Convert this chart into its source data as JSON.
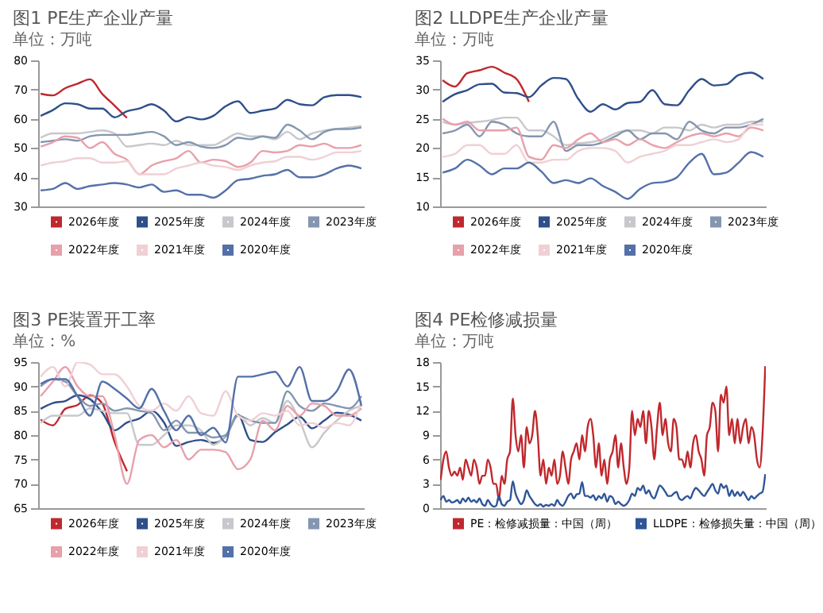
{
  "chart_data": [
    {
      "type": "line",
      "title": "图1 PE生产企业产量",
      "subtitle": "单位：万吨",
      "categories": [
        null,
        null,
        null,
        null,
        null,
        null,
        null,
        null,
        null,
        null,
        null,
        null,
        null,
        null,
        null,
        null,
        null,
        null,
        null,
        null,
        null,
        null,
        null,
        null,
        null,
        null,
        null
      ],
      "ylim": [
        30,
        80
      ],
      "yticks": [
        30,
        40,
        50,
        60,
        70,
        80
      ],
      "tick_labels": "y",
      "legend": "bottom",
      "series": [
        {
          "name": "2026年度",
          "color": "#c0282d",
          "values": [
            68.6,
            68,
            70.5,
            72,
            73.5,
            68.5,
            64.5,
            60.3,
            null,
            null,
            null,
            null,
            null,
            null,
            null,
            null,
            null,
            null,
            null,
            null,
            null,
            null,
            null,
            null,
            null,
            null,
            null
          ]
        },
        {
          "name": "2025年度",
          "color": "#2f4f8a",
          "values": [
            61,
            63,
            65.3,
            65,
            63.5,
            63.5,
            60.5,
            62.6,
            63.5,
            65,
            62.8,
            59.1,
            60.6,
            59.8,
            61,
            64.3,
            66,
            62,
            62.8,
            63.5,
            66.5,
            65,
            64.6,
            67.4,
            68.1,
            68.1,
            67.4
          ]
        },
        {
          "name": "2024年度",
          "color": "#c8c8cc",
          "values": [
            53.5,
            55,
            55,
            55,
            55.5,
            56,
            55,
            50.5,
            51,
            51.5,
            51,
            52.5,
            51,
            51,
            51,
            53,
            55,
            54,
            54,
            53,
            55.5,
            53,
            55,
            56,
            56.5,
            57,
            57.5
          ]
        },
        {
          "name": "2023年度",
          "color": "#8496b0",
          "values": [
            52,
            52.5,
            53,
            52.5,
            54,
            54.5,
            54.5,
            54.5,
            55,
            55.5,
            54,
            51,
            52,
            50.5,
            50,
            51,
            53.5,
            53,
            54,
            53.5,
            58,
            56,
            53,
            55.5,
            56.5,
            56.5,
            57
          ]
        },
        {
          "name": "2022年度",
          "color": "#e8a0aa",
          "values": [
            50.5,
            52,
            54,
            53.5,
            50,
            52,
            48,
            46,
            41,
            44,
            45.5,
            46.5,
            49,
            45,
            46,
            45.5,
            43.5,
            45,
            49,
            48.5,
            49,
            51,
            50.5,
            51.5,
            50,
            50,
            51
          ]
        },
        {
          "name": "2021年度",
          "color": "#f0d0d4",
          "values": [
            44,
            45,
            45.5,
            46.5,
            46.5,
            45,
            45,
            45.5,
            41,
            41,
            41,
            43,
            44,
            45,
            44,
            43.5,
            42.5,
            44,
            45,
            45.5,
            47,
            47,
            46,
            47,
            48.5,
            48.5,
            49
          ]
        },
        {
          "name": "2020年度",
          "color": "#5470a8",
          "values": [
            35.5,
            36,
            38,
            36,
            37,
            37.5,
            38,
            37.5,
            36.5,
            37.5,
            35,
            35.5,
            34,
            34,
            33,
            35.5,
            39,
            39.5,
            40.5,
            41,
            42.5,
            40,
            40,
            41,
            43,
            44,
            43
          ]
        }
      ]
    },
    {
      "type": "line",
      "title": "图2 LLDPE生产企业产量",
      "subtitle": "单位：万吨",
      "categories": [
        null,
        null,
        null,
        null,
        null,
        null,
        null,
        null,
        null,
        null,
        null,
        null,
        null,
        null,
        null,
        null,
        null,
        null,
        null,
        null,
        null,
        null,
        null,
        null,
        null,
        null,
        null
      ],
      "ylim": [
        10,
        35
      ],
      "yticks": [
        10,
        15,
        20,
        25,
        30,
        35
      ],
      "tick_labels": "y",
      "legend": "bottom",
      "series": [
        {
          "name": "2026年度",
          "color": "#c0282d",
          "values": [
            31.6,
            30.5,
            32.8,
            33.3,
            33.9,
            32.9,
            31.8,
            27.9,
            null,
            null,
            null,
            null,
            null,
            null,
            null,
            null,
            null,
            null,
            null,
            null,
            null,
            null,
            null,
            null,
            null,
            null,
            null
          ]
        },
        {
          "name": "2025年度",
          "color": "#2f4f8a",
          "values": [
            27.9,
            29.2,
            29.9,
            30.9,
            31,
            29.5,
            29.4,
            28.7,
            30.7,
            32,
            31.8,
            28.4,
            26.2,
            27.5,
            26.6,
            27.7,
            27.9,
            29.9,
            27.5,
            27.3,
            29.9,
            31.8,
            30.7,
            30.9,
            32.5,
            32.9,
            31.8
          ]
        },
        {
          "name": "2024年度",
          "color": "#c8c8cc",
          "values": [
            24.5,
            24,
            24.3,
            24.5,
            24.8,
            25.2,
            25.2,
            23,
            23,
            22,
            20.5,
            20.8,
            21,
            21.5,
            22.5,
            23,
            23,
            22.5,
            23.5,
            23.5,
            23,
            24,
            23.5,
            24,
            24,
            24.5,
            24.5
          ]
        },
        {
          "name": "2023年度",
          "color": "#8496b0",
          "values": [
            22.5,
            23,
            24,
            22,
            24.5,
            24,
            22.5,
            22,
            22,
            24.5,
            19.5,
            20.5,
            20.5,
            21,
            22,
            23,
            21.5,
            22.5,
            22.5,
            21.5,
            24.5,
            23,
            22.5,
            23.5,
            23.5,
            24,
            25
          ]
        },
        {
          "name": "2022年度",
          "color": "#e8a0aa",
          "values": [
            25,
            24,
            24.5,
            23,
            23,
            23,
            23.5,
            18.5,
            18,
            20.5,
            20,
            21.5,
            22.5,
            21,
            21.5,
            20.5,
            21.5,
            20.5,
            20,
            21,
            22,
            22.5,
            22,
            22.5,
            22,
            23.5,
            23
          ]
        },
        {
          "name": "2021年度",
          "color": "#f0d0d4",
          "values": [
            18.5,
            19,
            20.5,
            20.5,
            19,
            19,
            20.5,
            17.5,
            17.5,
            18,
            18,
            19.5,
            20,
            20,
            19.5,
            17.5,
            18.5,
            19,
            19.5,
            20.5,
            20.5,
            21,
            21.5,
            21,
            21.5,
            24,
            24
          ]
        },
        {
          "name": "2020年度",
          "color": "#5470a8",
          "values": [
            15.8,
            16.5,
            18,
            17,
            15.5,
            16.5,
            16.5,
            17.5,
            16,
            14,
            14.5,
            14,
            14.8,
            13.5,
            12.5,
            11.3,
            13,
            14,
            14.2,
            15,
            17.5,
            19,
            15.5,
            15.8,
            17.5,
            19.3,
            18.5
          ]
        }
      ]
    },
    {
      "type": "line",
      "title": "图3 PE装置开工率",
      "subtitle": "单位：%",
      "categories": [
        null,
        null,
        null,
        null,
        null,
        null,
        null,
        null,
        null,
        null,
        null,
        null,
        null,
        null,
        null,
        null,
        null,
        null,
        null,
        null,
        null,
        null,
        null,
        null,
        null,
        null,
        null
      ],
      "ylim": [
        65,
        95
      ],
      "yticks": [
        65,
        70,
        75,
        80,
        85,
        90,
        95
      ],
      "tick_labels": "y",
      "legend": "bottom",
      "series": [
        {
          "name": "2026年度",
          "color": "#c0282d",
          "values": [
            83.2,
            82,
            85.4,
            86.2,
            88.2,
            86.5,
            78.6,
            72.6,
            null,
            null,
            null,
            null,
            null,
            null,
            null,
            null,
            null,
            null,
            null,
            null,
            null,
            null,
            null,
            null,
            null,
            null,
            null
          ]
        },
        {
          "name": "2025年度",
          "color": "#2f4f8a",
          "values": [
            85.4,
            86.6,
            87,
            88.2,
            87.4,
            84.6,
            81,
            82.6,
            83.4,
            85,
            82.6,
            77.8,
            78.6,
            79,
            78.4,
            79.8,
            84.2,
            79,
            78.6,
            80.6,
            82.2,
            83.8,
            81.4,
            83,
            84.6,
            84.2,
            83
          ]
        },
        {
          "name": "2024年度",
          "color": "#c8c8cc",
          "values": [
            82.5,
            84,
            84,
            84,
            85.5,
            85,
            84.5,
            84.5,
            78,
            78,
            80,
            82,
            82,
            81,
            78,
            80,
            84,
            82,
            83.5,
            82.5,
            87,
            83,
            77.5,
            80.5,
            83,
            85,
            86
          ]
        },
        {
          "name": "2023年度",
          "color": "#8496b0",
          "values": [
            90,
            91.5,
            91,
            88,
            86,
            86.5,
            85,
            85.5,
            85,
            84.5,
            81,
            83,
            80.5,
            80.5,
            79.5,
            80,
            84,
            83,
            82.5,
            82.5,
            89,
            86,
            85,
            86.5,
            86,
            85.5,
            88
          ]
        },
        {
          "name": "2022年度",
          "color": "#e8a0aa",
          "values": [
            88,
            91,
            94,
            90,
            88,
            88,
            80,
            70,
            79,
            80,
            77.5,
            79,
            75,
            77,
            77,
            76.5,
            73,
            75,
            83,
            81,
            86,
            84,
            86.5,
            86,
            84,
            84,
            85.5
          ]
        },
        {
          "name": "2021年度",
          "color": "#f0d0d4",
          "values": [
            92,
            94,
            90,
            95,
            94.5,
            92.5,
            92.5,
            90,
            86,
            85,
            86.5,
            85,
            88,
            84.5,
            84,
            89,
            84,
            83,
            84.5,
            84,
            85,
            82,
            82.5,
            81.5,
            82.5,
            82,
            87
          ]
        },
        {
          "name": "2020年度",
          "color": "#5470a8",
          "values": [
            90.5,
            91.5,
            91.5,
            88,
            84,
            91,
            89.5,
            87.5,
            85.5,
            89.5,
            85,
            81,
            84,
            80,
            81.5,
            78.5,
            92,
            92,
            92.5,
            93,
            90,
            94,
            87,
            87,
            89,
            93.5,
            86
          ]
        }
      ]
    },
    {
      "type": "line",
      "title": "图4 PE检修减损量",
      "subtitle": "单位：万吨",
      "categories": [
        null,
        null,
        null,
        null,
        null,
        null,
        null,
        null,
        null,
        null,
        null,
        null,
        null,
        null,
        null,
        null,
        null,
        null,
        null,
        null,
        null,
        null,
        null,
        null,
        null,
        null,
        null,
        null,
        null,
        null,
        null,
        null,
        null,
        null,
        null,
        null,
        null,
        null,
        null,
        null,
        null,
        null,
        null,
        null,
        null,
        null,
        null,
        null,
        null,
        null,
        null,
        null,
        null,
        null,
        null,
        null,
        null,
        null,
        null,
        null,
        null,
        null,
        null,
        null,
        null,
        null,
        null,
        null,
        null,
        null,
        null,
        null,
        null,
        null,
        null,
        null,
        null,
        null,
        null,
        null,
        null,
        null,
        null,
        null,
        null,
        null,
        null,
        null,
        null,
        null,
        null,
        null,
        null,
        null,
        null,
        null,
        null,
        null,
        null,
        null,
        null,
        null,
        null,
        null,
        null,
        null,
        null,
        null,
        null,
        null,
        null,
        null,
        null,
        null,
        null,
        null,
        null,
        null
      ],
      "ylim": [
        0,
        18
      ],
      "yticks": [
        0,
        3,
        6,
        9,
        12,
        15,
        18
      ],
      "tick_labels": "y",
      "legend": "bottom",
      "series": [
        {
          "name": "PE：检修减损量：中国（周）",
          "color": "#c0282d",
          "values": [
            3.5,
            6,
            7,
            5,
            4,
            4.5,
            4,
            5,
            3.5,
            6,
            5,
            4,
            6,
            5,
            3,
            4,
            4,
            6,
            5,
            3,
            3,
            1,
            4,
            3,
            6,
            7,
            13.5,
            9,
            7,
            9,
            5,
            10,
            8,
            9,
            12,
            9,
            4,
            6,
            3,
            5,
            4,
            6,
            3,
            4,
            7,
            5,
            3,
            6,
            7,
            8,
            6,
            9,
            7,
            10,
            11,
            9,
            5,
            8,
            4,
            6,
            3,
            6,
            7,
            9,
            5,
            8,
            5,
            3,
            5,
            12,
            9,
            11,
            10,
            12,
            8,
            12,
            10,
            6,
            10,
            13,
            9,
            11,
            8,
            7,
            11,
            10,
            6,
            6,
            5,
            7,
            5,
            8,
            9,
            7,
            6,
            4,
            9,
            10,
            13,
            12,
            7,
            14,
            13,
            15,
            9,
            11,
            8,
            11,
            8,
            10,
            11,
            8,
            10,
            9,
            6,
            5,
            9,
            17.5
          ]
        },
        {
          "name": "LLDPE：检修损失量：中国（周）",
          "color": "#2f5597",
          "values": [
            1,
            1.5,
            0.8,
            1,
            0.7,
            0.8,
            1,
            0.6,
            1.2,
            0.8,
            1.3,
            0.8,
            1,
            0.7,
            1.2,
            0.5,
            0.3,
            1,
            0.5,
            0.2,
            0.3,
            1.5,
            0.5,
            0.3,
            0.8,
            1,
            3.3,
            1.8,
            1,
            0.5,
            1,
            2.2,
            1.5,
            1,
            0.5,
            0.3,
            0.5,
            0.2,
            0.4,
            0.3,
            0.5,
            0.3,
            1,
            0.5,
            0.3,
            0.8,
            1.5,
            1.8,
            1.2,
            1.7,
            1.8,
            3.2,
            1.5,
            1.5,
            1.3,
            1.6,
            1,
            1.5,
            1.2,
            1.8,
            0.8,
            1.5,
            1.3,
            0.5,
            0.8,
            0.5,
            0.3,
            0.5,
            1,
            1.8,
            1.5,
            2.5,
            2.2,
            2.8,
            1.8,
            2.2,
            1.5,
            1.2,
            2,
            2.8,
            2.5,
            2,
            1.5,
            1.5,
            1.8,
            2,
            1.2,
            1,
            1.3,
            1.5,
            1.2,
            2,
            2.5,
            2.2,
            1.8,
            1.5,
            2,
            2.5,
            3,
            2.2,
            1.8,
            3,
            2.5,
            2.8,
            1.5,
            2.2,
            1.5,
            2,
            1.5,
            2,
            1.5,
            1,
            1.5,
            1.2,
            1.5,
            1.8,
            2,
            4.2
          ]
        }
      ]
    }
  ]
}
